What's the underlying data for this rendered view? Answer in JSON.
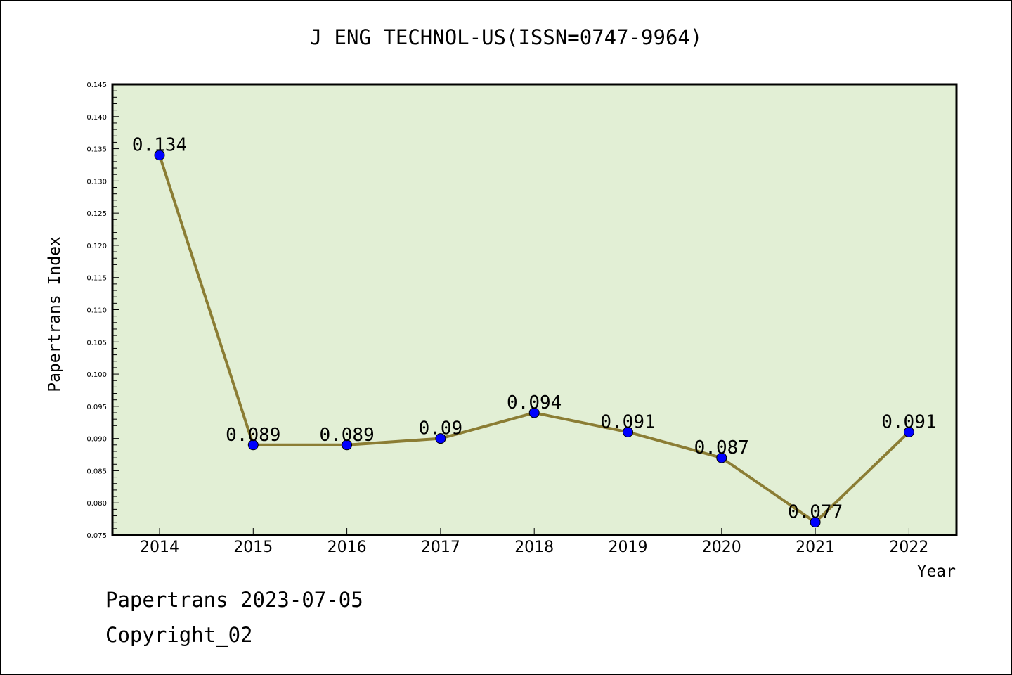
{
  "chart_data": {
    "type": "line",
    "title": "J ENG TECHNOL-US(ISSN=0747-9964)",
    "xlabel": "Year",
    "ylabel": "Papertrans Index",
    "categories": [
      "2014",
      "2015",
      "2016",
      "2017",
      "2018",
      "2019",
      "2020",
      "2021",
      "2022"
    ],
    "values": [
      0.134,
      0.089,
      0.089,
      0.09,
      0.094,
      0.091,
      0.087,
      0.077,
      0.091
    ],
    "data_labels": [
      "0.134",
      "0.089",
      "0.089",
      "0.09",
      "0.094",
      "0.091",
      "0.087",
      "0.077",
      "0.091"
    ],
    "ylim": [
      0.075,
      0.145
    ],
    "yticks": [
      "0.075",
      "0.080",
      "0.085",
      "0.090",
      "0.095",
      "0.100",
      "0.105",
      "0.110",
      "0.115",
      "0.120",
      "0.125",
      "0.130",
      "0.135",
      "0.140",
      "0.145"
    ],
    "colors": {
      "plot_background": "#e2efd5",
      "line": "#8b7d34",
      "marker": "#0000ff"
    }
  },
  "footer": {
    "line1": "Papertrans 2023-07-05",
    "line2": "Copyright_02"
  }
}
